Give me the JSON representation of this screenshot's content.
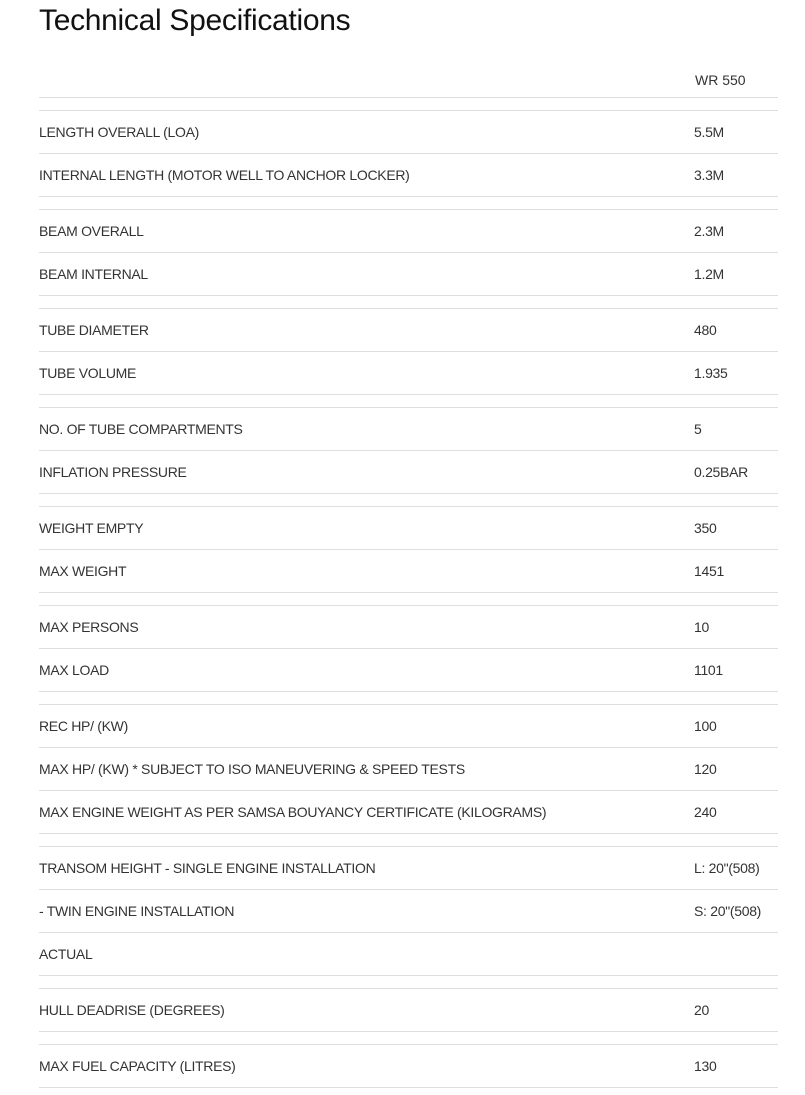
{
  "title": "Technical Specifications",
  "column_header": "WR 550",
  "groups": [
    [
      [
        "LENGTH OVERALL (LOA)",
        "5.5M"
      ],
      [
        "INTERNAL LENGTH (MOTOR WELL TO ANCHOR LOCKER)",
        "3.3M"
      ]
    ],
    [
      [
        "BEAM OVERALL",
        "2.3M"
      ],
      [
        "BEAM INTERNAL",
        "1.2M"
      ]
    ],
    [
      [
        "TUBE DIAMETER",
        "480"
      ],
      [
        "TUBE VOLUME",
        "1.935"
      ]
    ],
    [
      [
        "NO. OF TUBE COMPARTMENTS",
        "5"
      ],
      [
        "INFLATION PRESSURE",
        "0.25BAR"
      ]
    ],
    [
      [
        "WEIGHT EMPTY",
        "350"
      ],
      [
        "MAX WEIGHT",
        "1451"
      ]
    ],
    [
      [
        "MAX PERSONS",
        "10"
      ],
      [
        "MAX LOAD",
        "1101"
      ]
    ],
    [
      [
        "REC HP/ (KW)",
        "100"
      ],
      [
        "MAX HP/ (KW) * SUBJECT TO ISO MANEUVERING & SPEED TESTS",
        "120"
      ],
      [
        "MAX ENGINE WEIGHT AS PER SAMSA BOUYANCY CERTIFICATE (KILOGRAMS)",
        "240"
      ]
    ],
    [
      [
        "TRANSOM HEIGHT - SINGLE ENGINE INSTALLATION",
        "L: 20\"(508)"
      ],
      [
        "- TWIN ENGINE INSTALLATION",
        "S: 20\"(508)"
      ],
      [
        "ACTUAL",
        ""
      ]
    ],
    [
      [
        "HULL DEADRISE (DEGREES)",
        "20"
      ]
    ],
    [
      [
        "MAX FUEL CAPACITY (LITRES)",
        "130"
      ]
    ]
  ]
}
